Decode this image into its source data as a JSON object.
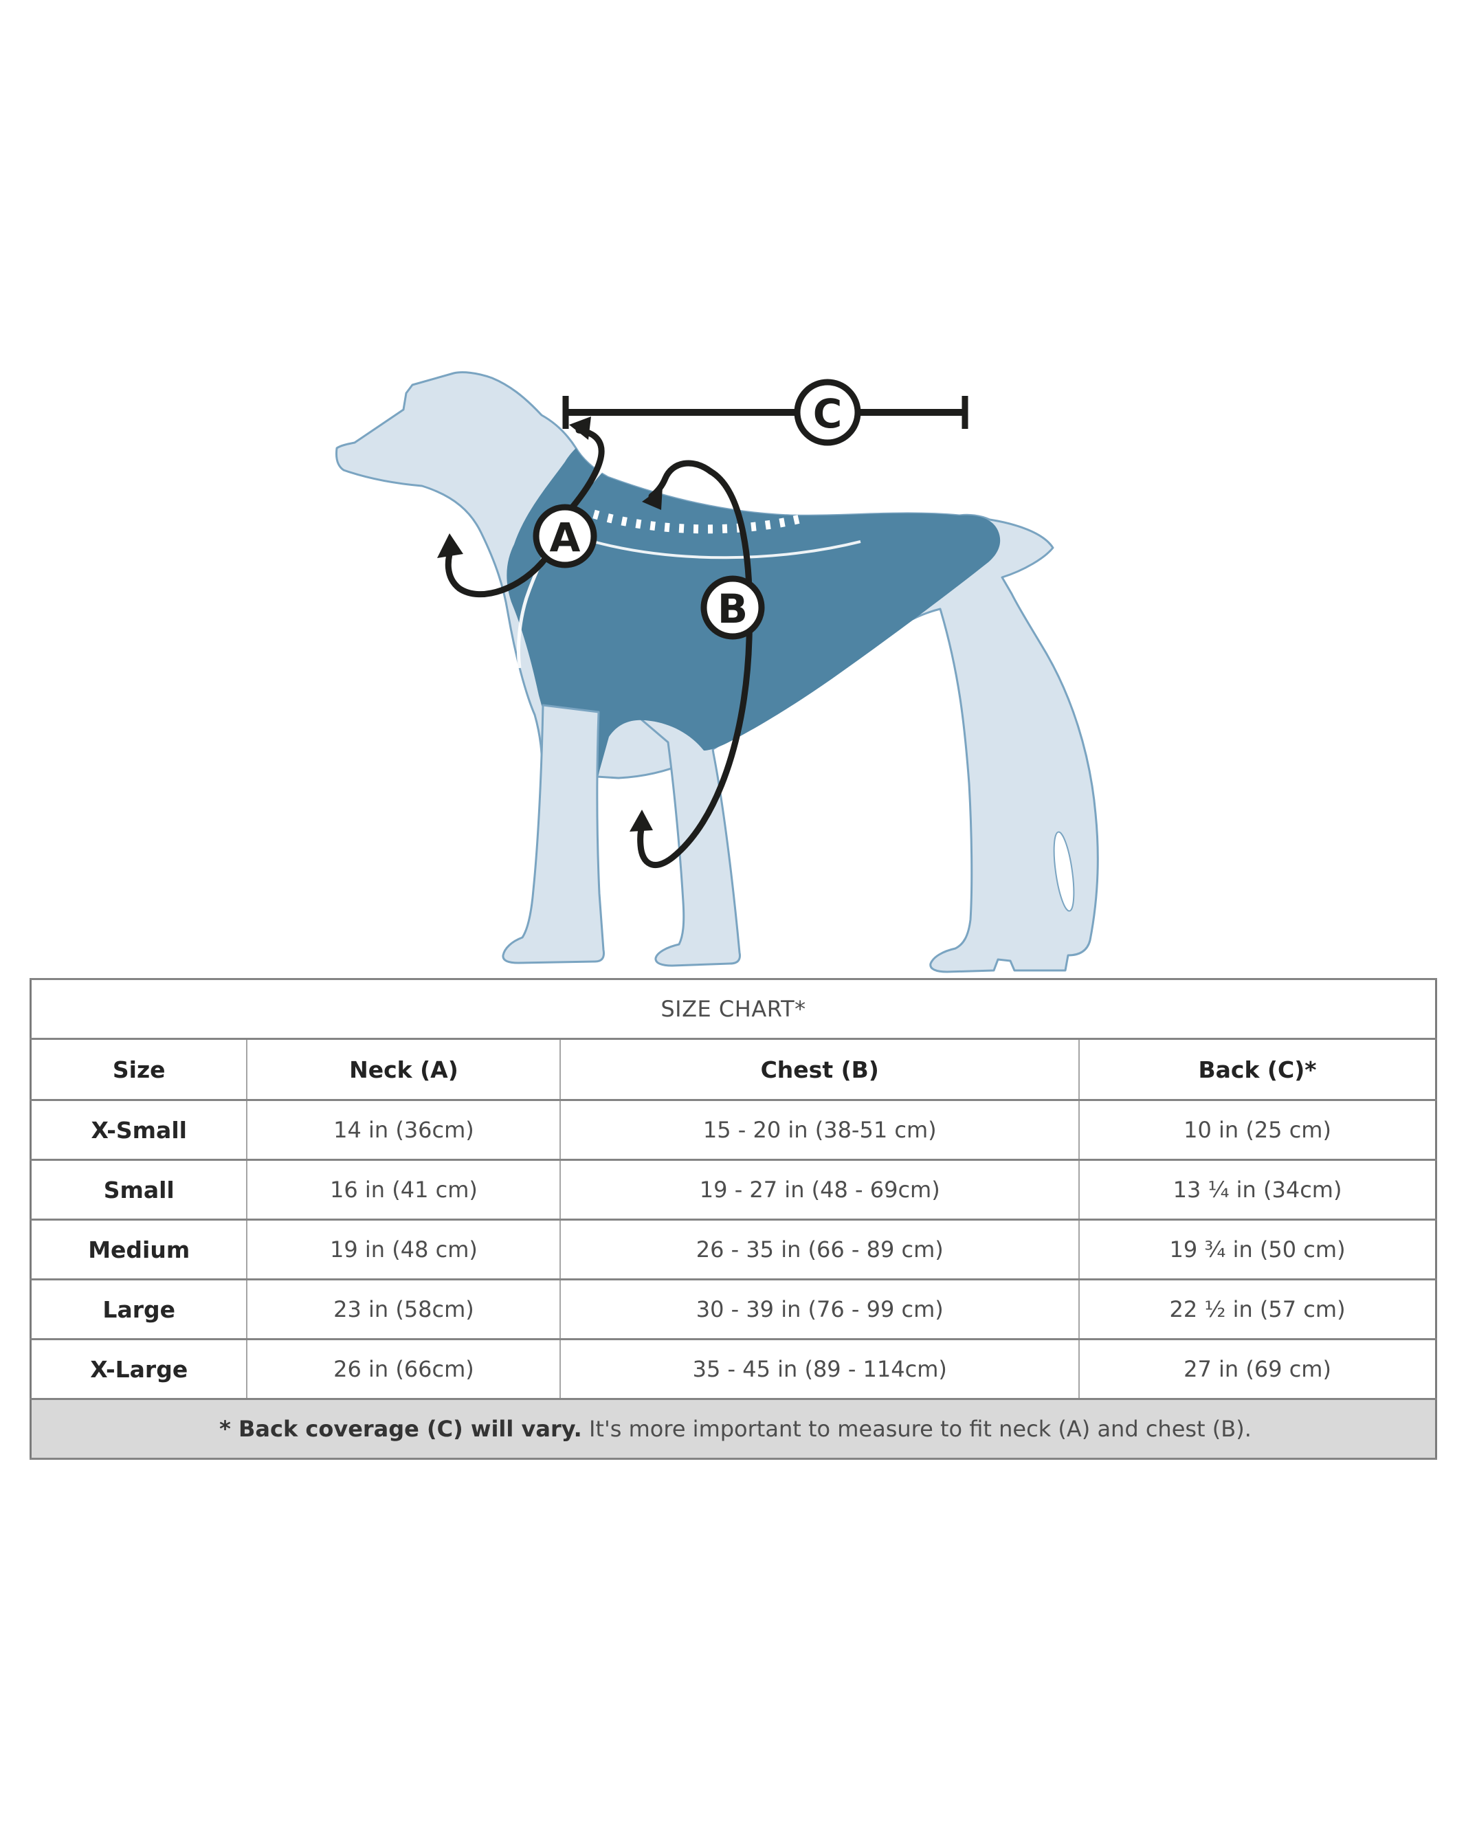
{
  "diagram": {
    "labels": {
      "a": "A",
      "b": "B",
      "c": "C"
    },
    "colors": {
      "body": "#d7e3ed",
      "outline": "#7aa4c1",
      "vest": "#4f84a3",
      "arrow": "#1d1d1b",
      "stitch": "#ffffff"
    }
  },
  "table": {
    "title": "SIZE CHART*",
    "headers": [
      "Size",
      "Neck (A)",
      "Chest (B)",
      "Back (C)*"
    ],
    "rows": [
      [
        "X-Small",
        "14 in (36cm)",
        "15 - 20 in (38-51 cm)",
        "10 in (25 cm)"
      ],
      [
        "Small",
        "16 in (41 cm)",
        "19 - 27 in (48 - 69cm)",
        "13 ¼ in (34cm)"
      ],
      [
        "Medium",
        "19 in (48 cm)",
        "26 - 35 in (66 - 89 cm)",
        "19 ¾ in (50 cm)"
      ],
      [
        "Large",
        "23 in (58cm)",
        "30 - 39 in (76 - 99 cm)",
        "22 ½ in (57 cm)"
      ],
      [
        "X-Large",
        "26 in (66cm)",
        "35 - 45 in (89 - 114cm)",
        "27 in (69 cm)"
      ]
    ],
    "footnote_bold": "* Back coverage (C) will vary.",
    "footnote_rest": " It's more important to measure to fit neck (A) and chest (B)."
  }
}
